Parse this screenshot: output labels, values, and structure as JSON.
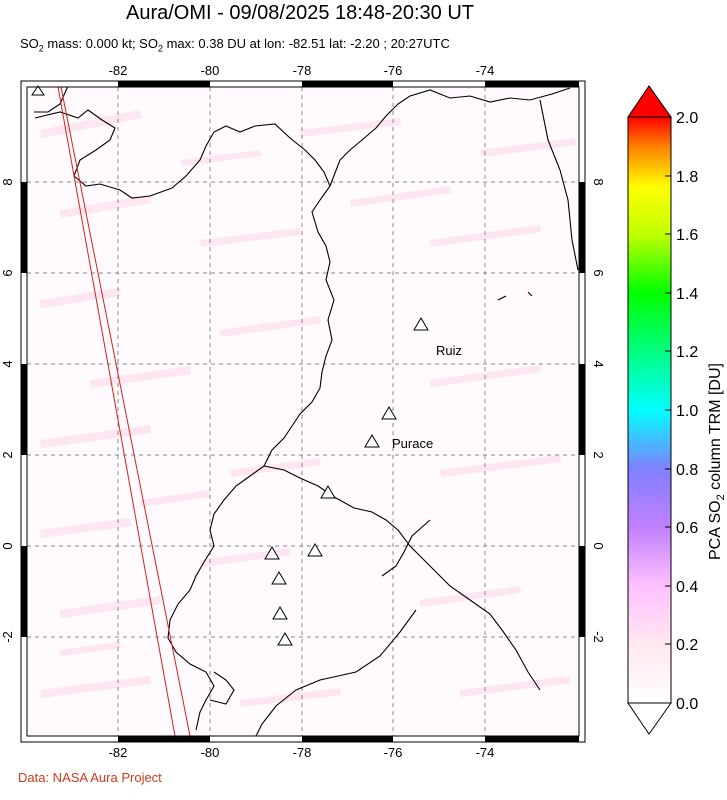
{
  "title": "Aura/OMI - 09/08/2025 18:48-20:30 UT",
  "subtitle": {
    "part1": "SO",
    "sub1": "2",
    "part2": " mass: 0.000 kt; SO",
    "sub2": "2",
    "part3": " max: 0.38 DU at lon: -82.51 lat: -2.20 ; 20:27UTC"
  },
  "credit": "Data: NASA Aura Project",
  "map": {
    "lon_labels": [
      "-82",
      "-80",
      "-78",
      "-76",
      "-74"
    ],
    "lat_labels": [
      "8",
      "6",
      "4",
      "2",
      "0",
      "-2"
    ],
    "volcano_labels": [
      "Ruiz",
      "Purace"
    ]
  },
  "colorbar": {
    "label_prefix": "PCA SO",
    "label_sub": "2",
    "label_suffix": " column TRM [DU]",
    "ticks": [
      "2.0",
      "1.8",
      "1.6",
      "1.4",
      "1.2",
      "1.0",
      "0.8",
      "0.6",
      "0.4",
      "0.2",
      "0.0"
    ],
    "colors": [
      "#ff0000",
      "#ff8000",
      "#ffff00",
      "#80ff00",
      "#00ff00",
      "#00ffff",
      "#8080ff",
      "#c080ff",
      "#ffc0ff",
      "#ffe8f0",
      "#ffffff"
    ]
  }
}
